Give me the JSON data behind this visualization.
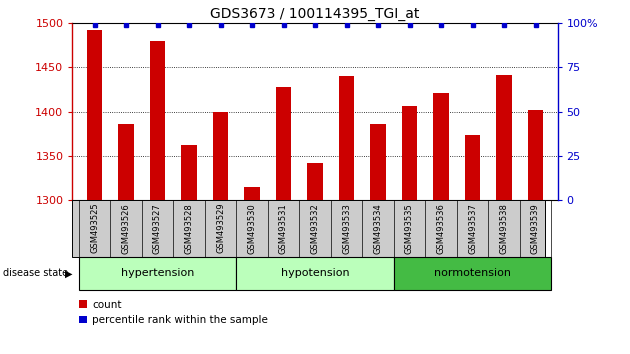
{
  "title": "GDS3673 / 100114395_TGI_at",
  "samples": [
    "GSM493525",
    "GSM493526",
    "GSM493527",
    "GSM493528",
    "GSM493529",
    "GSM493530",
    "GSM493531",
    "GSM493532",
    "GSM493533",
    "GSM493534",
    "GSM493535",
    "GSM493536",
    "GSM493537",
    "GSM493538",
    "GSM493539"
  ],
  "counts": [
    1492,
    1386,
    1480,
    1362,
    1399,
    1315,
    1428,
    1342,
    1440,
    1386,
    1406,
    1421,
    1374,
    1441,
    1402
  ],
  "percentiles": [
    99,
    99,
    99,
    99,
    99,
    99,
    99,
    99,
    99,
    99,
    99,
    99,
    99,
    99,
    99
  ],
  "ylim_left": [
    1300,
    1500
  ],
  "ylim_right": [
    0,
    100
  ],
  "yticks_left": [
    1300,
    1350,
    1400,
    1450,
    1500
  ],
  "yticks_right": [
    0,
    25,
    50,
    75,
    100
  ],
  "bar_color": "#cc0000",
  "percentile_color": "#0000cc",
  "bar_width": 0.5,
  "background_color": "#ffffff",
  "tick_label_color": "#bbbbbb",
  "groups": [
    {
      "label": "hypertension",
      "start": 0,
      "end": 5,
      "color": "#bbffbb"
    },
    {
      "label": "hypotension",
      "start": 5,
      "end": 10,
      "color": "#bbffbb"
    },
    {
      "label": "normotension",
      "start": 10,
      "end": 15,
      "color": "#44bb44"
    }
  ]
}
